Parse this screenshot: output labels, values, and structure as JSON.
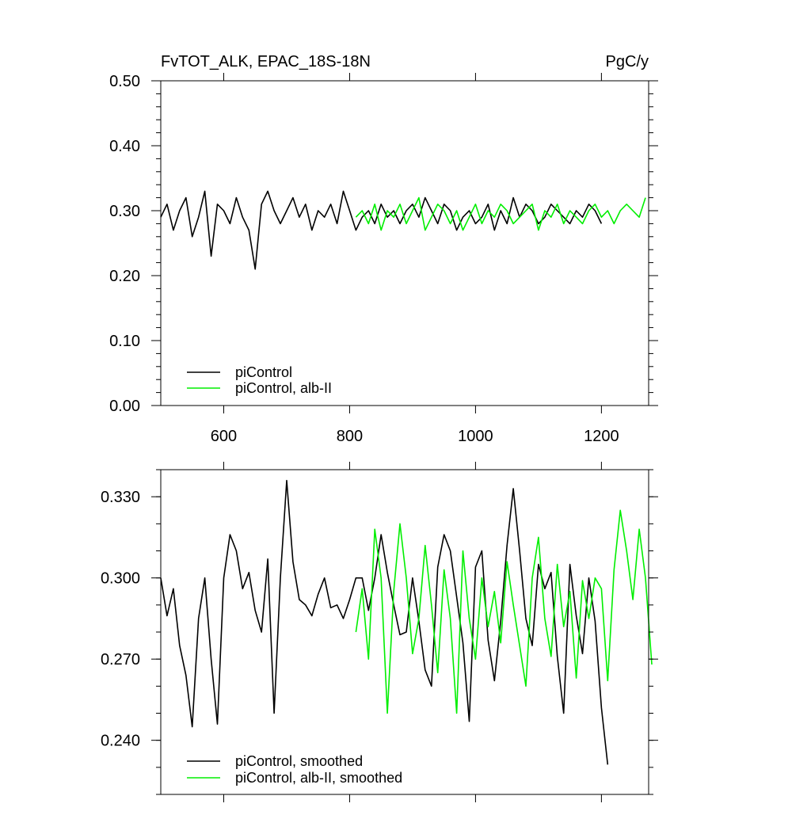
{
  "header": {
    "title_left": "FvTOT_ALK, EPAC_18S-18N",
    "units": "PgC/y"
  },
  "colors": {
    "piControl": "#000000",
    "alb_II": "#00ee00"
  },
  "chart_data": [
    {
      "type": "line",
      "panel": "top",
      "title": "FvTOT_ALK, EPAC_18S-18N",
      "ylabel": "PgC/y",
      "xlim": [
        500,
        1275
      ],
      "ylim": [
        0.0,
        0.5
      ],
      "xticks": [
        600,
        800,
        1000,
        1200
      ],
      "xtick_labels": [
        "600",
        "800",
        "1000",
        "1200"
      ],
      "yticks": [
        0.0,
        0.1,
        0.2,
        0.3,
        0.4,
        0.5
      ],
      "ytick_labels": [
        "0.00",
        "0.10",
        "0.20",
        "0.30",
        "0.40",
        "0.50"
      ],
      "grid": false,
      "legend_position": "bottom-left",
      "series": [
        {
          "name": "piControl",
          "color": "#000000",
          "x_start": 500,
          "x_step": 10,
          "values": [
            0.29,
            0.31,
            0.27,
            0.3,
            0.32,
            0.26,
            0.29,
            0.33,
            0.23,
            0.31,
            0.3,
            0.28,
            0.32,
            0.29,
            0.27,
            0.21,
            0.31,
            0.33,
            0.3,
            0.28,
            0.3,
            0.32,
            0.29,
            0.31,
            0.27,
            0.3,
            0.29,
            0.31,
            0.28,
            0.33,
            0.3,
            0.27,
            0.29,
            0.3,
            0.28,
            0.31,
            0.29,
            0.3,
            0.28,
            0.3,
            0.31,
            0.29,
            0.32,
            0.3,
            0.28,
            0.31,
            0.3,
            0.27,
            0.29,
            0.3,
            0.28,
            0.29,
            0.31,
            0.27,
            0.3,
            0.28,
            0.32,
            0.29,
            0.31,
            0.3,
            0.28,
            0.29,
            0.31,
            0.3,
            0.29,
            0.28,
            0.3,
            0.29,
            0.31,
            0.3,
            0.28
          ]
        },
        {
          "name": "piControl, alb-II",
          "color": "#00ee00",
          "x_start": 810,
          "x_step": 10,
          "values": [
            0.29,
            0.3,
            0.28,
            0.31,
            0.27,
            0.3,
            0.29,
            0.31,
            0.28,
            0.3,
            0.32,
            0.27,
            0.29,
            0.31,
            0.3,
            0.28,
            0.3,
            0.27,
            0.29,
            0.31,
            0.28,
            0.3,
            0.29,
            0.31,
            0.3,
            0.28,
            0.29,
            0.3,
            0.31,
            0.27,
            0.3,
            0.29,
            0.31,
            0.28,
            0.3,
            0.29,
            0.28,
            0.3,
            0.31,
            0.29,
            0.3,
            0.28,
            0.3,
            0.31,
            0.3,
            0.29,
            0.32
          ]
        }
      ]
    },
    {
      "type": "line",
      "panel": "bottom",
      "xlim": [
        500,
        1275
      ],
      "ylim": [
        0.22,
        0.34
      ],
      "xticks": [
        600,
        800,
        1000,
        1200
      ],
      "yticks": [
        0.24,
        0.27,
        0.3,
        0.33
      ],
      "ytick_labels": [
        "0.240",
        "0.270",
        "0.300",
        "0.330"
      ],
      "grid": false,
      "legend_position": "bottom-left",
      "series": [
        {
          "name": "piControl, smoothed",
          "color": "#000000",
          "x_start": 500,
          "x_step": 10,
          "values": [
            0.3,
            0.286,
            0.296,
            0.275,
            0.264,
            0.245,
            0.285,
            0.3,
            0.27,
            0.246,
            0.3,
            0.316,
            0.31,
            0.296,
            0.302,
            0.288,
            0.28,
            0.307,
            0.25,
            0.3,
            0.336,
            0.306,
            0.292,
            0.29,
            0.286,
            0.294,
            0.3,
            0.289,
            0.29,
            0.285,
            0.292,
            0.3,
            0.3,
            0.288,
            0.3,
            0.316,
            0.302,
            0.29,
            0.279,
            0.28,
            0.3,
            0.284,
            0.266,
            0.26,
            0.304,
            0.316,
            0.31,
            0.293,
            0.276,
            0.247,
            0.304,
            0.31,
            0.277,
            0.262,
            0.284,
            0.312,
            0.333,
            0.31,
            0.285,
            0.275,
            0.305,
            0.296,
            0.302,
            0.271,
            0.25,
            0.305,
            0.286,
            0.272,
            0.3,
            0.284,
            0.252,
            0.231
          ]
        },
        {
          "name": "piControl, alb-II, smoothed",
          "color": "#00ee00",
          "x_start": 810,
          "x_step": 10,
          "values": [
            0.28,
            0.296,
            0.27,
            0.318,
            0.3,
            0.25,
            0.295,
            0.32,
            0.3,
            0.272,
            0.285,
            0.312,
            0.29,
            0.265,
            0.303,
            0.285,
            0.25,
            0.31,
            0.285,
            0.27,
            0.3,
            0.282,
            0.295,
            0.276,
            0.306,
            0.29,
            0.275,
            0.26,
            0.3,
            0.315,
            0.285,
            0.271,
            0.305,
            0.282,
            0.295,
            0.263,
            0.299,
            0.285,
            0.3,
            0.296,
            0.262,
            0.303,
            0.325,
            0.31,
            0.292,
            0.318,
            0.3,
            0.268
          ]
        }
      ]
    }
  ]
}
